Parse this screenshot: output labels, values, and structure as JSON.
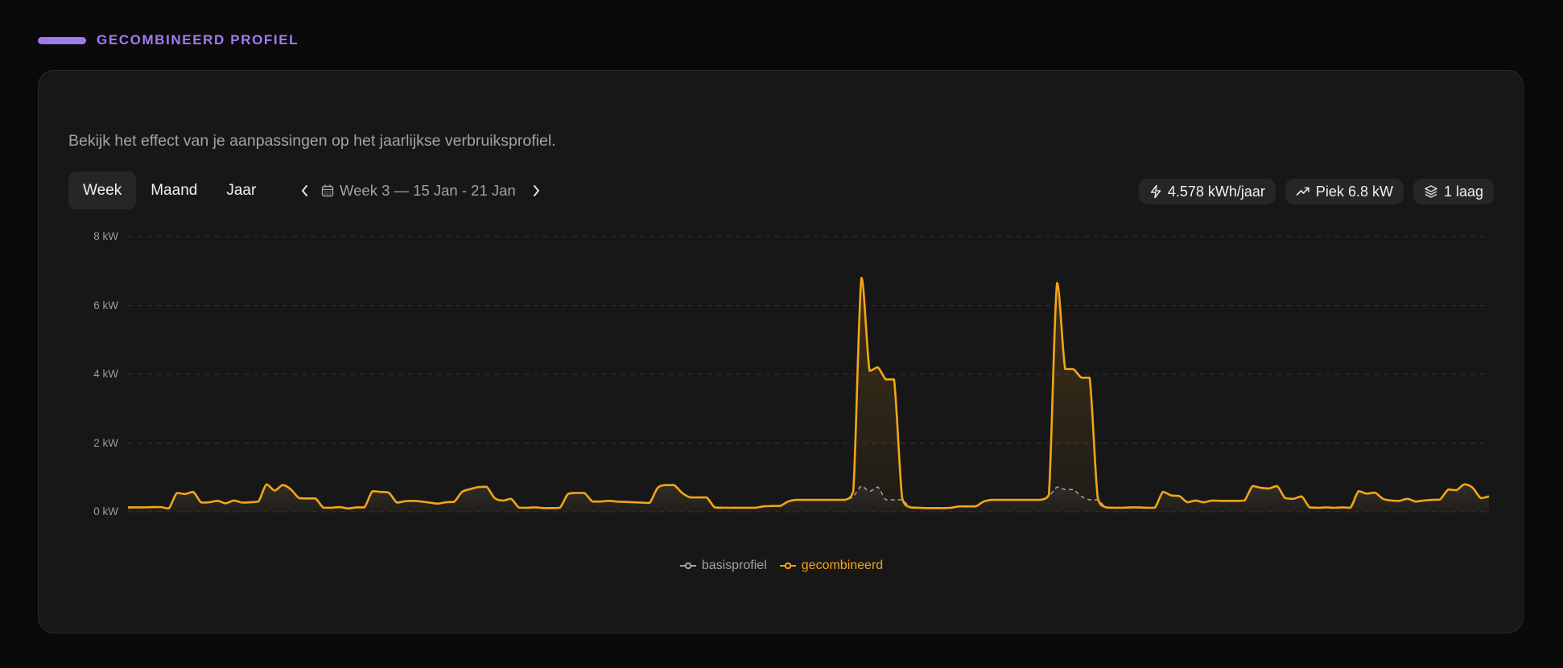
{
  "section": {
    "title": "GECOMBINEERD PROFIEL",
    "accent": "#9f7aea"
  },
  "card": {
    "subtitle": "Bekijk het effect van je aanpassingen op het jaarlijkse verbruiksprofiel."
  },
  "tabs": [
    {
      "label": "Week",
      "active": true
    },
    {
      "label": "Maand",
      "active": false
    },
    {
      "label": "Jaar",
      "active": false
    }
  ],
  "nav": {
    "range": "Week 3 — 15 Jan - 21 Jan",
    "prev_icon": "chevron-left-icon",
    "next_icon": "chevron-right-icon",
    "calendar_icon": "calendar-icon"
  },
  "badges": [
    {
      "icon": "zap-icon",
      "label": "4.578 kWh/jaar"
    },
    {
      "icon": "trending-up-icon",
      "label": "Piek 6.8 kW"
    },
    {
      "icon": "layers-icon",
      "label": "1 laag"
    }
  ],
  "chart_data": {
    "type": "area",
    "x_unit": "hour of week",
    "ylim": [
      0,
      8
    ],
    "y_ticks": [
      {
        "value": 0,
        "label": "0 kW"
      },
      {
        "value": 2,
        "label": "2 kW"
      },
      {
        "value": 4,
        "label": "4 kW"
      },
      {
        "value": 6,
        "label": "6 kW"
      },
      {
        "value": 8,
        "label": "8 kW"
      }
    ],
    "grid": true,
    "legend": "bottom-center",
    "series": [
      {
        "name": "basisprofiel",
        "color": "#a3a3a3",
        "dashed": true,
        "values": [
          0.13,
          0.13,
          0.13,
          0.14,
          0.14,
          0.1,
          0.55,
          0.52,
          0.58,
          0.27,
          0.28,
          0.32,
          0.25,
          0.33,
          0.27,
          0.28,
          0.3,
          0.8,
          0.62,
          0.78,
          0.65,
          0.4,
          0.39,
          0.39,
          0.12,
          0.12,
          0.14,
          0.1,
          0.13,
          0.13,
          0.6,
          0.58,
          0.56,
          0.27,
          0.31,
          0.32,
          0.3,
          0.27,
          0.24,
          0.28,
          0.29,
          0.58,
          0.66,
          0.72,
          0.73,
          0.4,
          0.33,
          0.38,
          0.12,
          0.12,
          0.13,
          0.11,
          0.11,
          0.12,
          0.52,
          0.55,
          0.55,
          0.3,
          0.3,
          0.32,
          0.3,
          0.29,
          0.28,
          0.27,
          0.26,
          0.7,
          0.78,
          0.78,
          0.55,
          0.42,
          0.42,
          0.42,
          0.13,
          0.12,
          0.12,
          0.12,
          0.12,
          0.12,
          0.16,
          0.17,
          0.17,
          0.3,
          0.35,
          0.35,
          0.35,
          0.35,
          0.35,
          0.35,
          0.35,
          0.45,
          0.75,
          0.6,
          0.72,
          0.35,
          0.35,
          0.35,
          0.13,
          0.12,
          0.11,
          0.11,
          0.11,
          0.12,
          0.16,
          0.16,
          0.16,
          0.3,
          0.35,
          0.35,
          0.35,
          0.35,
          0.35,
          0.35,
          0.35,
          0.45,
          0.72,
          0.65,
          0.65,
          0.45,
          0.35,
          0.35,
          0.13,
          0.12,
          0.12,
          0.13,
          0.13,
          0.12,
          0.12,
          0.58,
          0.48,
          0.46,
          0.28,
          0.33,
          0.28,
          0.33,
          0.32,
          0.32,
          0.32,
          0.33,
          0.75,
          0.7,
          0.68,
          0.75,
          0.4,
          0.38,
          0.45,
          0.13,
          0.12,
          0.13,
          0.12,
          0.13,
          0.12,
          0.6,
          0.53,
          0.56,
          0.38,
          0.33,
          0.32,
          0.38,
          0.3,
          0.33,
          0.35,
          0.36,
          0.65,
          0.63,
          0.8,
          0.7,
          0.4,
          0.45
        ]
      },
      {
        "name": "gecombineerd",
        "color": "#f5a516",
        "dashed": false,
        "values": [
          0.13,
          0.13,
          0.13,
          0.14,
          0.14,
          0.1,
          0.55,
          0.52,
          0.58,
          0.27,
          0.28,
          0.32,
          0.25,
          0.33,
          0.27,
          0.28,
          0.3,
          0.8,
          0.62,
          0.78,
          0.65,
          0.4,
          0.39,
          0.39,
          0.12,
          0.12,
          0.14,
          0.1,
          0.13,
          0.13,
          0.6,
          0.58,
          0.56,
          0.27,
          0.31,
          0.32,
          0.3,
          0.27,
          0.24,
          0.28,
          0.29,
          0.58,
          0.66,
          0.72,
          0.73,
          0.4,
          0.33,
          0.38,
          0.12,
          0.12,
          0.13,
          0.11,
          0.11,
          0.12,
          0.52,
          0.55,
          0.55,
          0.3,
          0.3,
          0.32,
          0.3,
          0.29,
          0.28,
          0.27,
          0.26,
          0.7,
          0.78,
          0.78,
          0.55,
          0.42,
          0.42,
          0.42,
          0.13,
          0.12,
          0.12,
          0.12,
          0.12,
          0.12,
          0.16,
          0.17,
          0.17,
          0.3,
          0.35,
          0.35,
          0.35,
          0.35,
          0.35,
          0.35,
          0.35,
          0.6,
          6.8,
          4.1,
          4.2,
          3.85,
          3.85,
          0.4,
          0.13,
          0.12,
          0.11,
          0.11,
          0.11,
          0.12,
          0.16,
          0.16,
          0.16,
          0.3,
          0.35,
          0.35,
          0.35,
          0.35,
          0.35,
          0.35,
          0.35,
          0.5,
          6.65,
          4.15,
          4.15,
          3.9,
          3.9,
          0.4,
          0.13,
          0.12,
          0.12,
          0.13,
          0.13,
          0.12,
          0.12,
          0.58,
          0.48,
          0.46,
          0.28,
          0.33,
          0.28,
          0.33,
          0.32,
          0.32,
          0.32,
          0.33,
          0.75,
          0.7,
          0.68,
          0.75,
          0.4,
          0.38,
          0.45,
          0.13,
          0.12,
          0.13,
          0.12,
          0.13,
          0.12,
          0.6,
          0.53,
          0.56,
          0.38,
          0.33,
          0.32,
          0.38,
          0.3,
          0.33,
          0.35,
          0.36,
          0.65,
          0.63,
          0.8,
          0.7,
          0.4,
          0.45
        ]
      }
    ]
  }
}
